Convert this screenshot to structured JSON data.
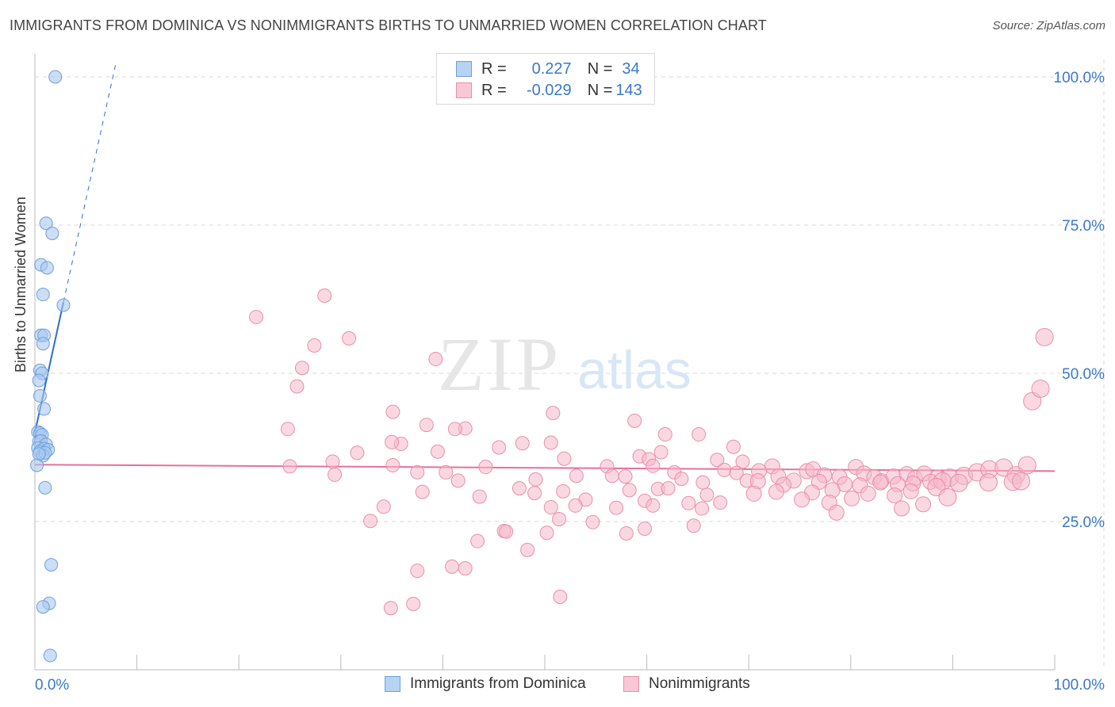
{
  "title": "IMMIGRANTS FROM DOMINICA VS NONIMMIGRANTS BIRTHS TO UNMARRIED WOMEN CORRELATION CHART",
  "source": "Source: ZipAtlas.com",
  "watermark": {
    "zip": "ZIP",
    "atlas": "atlas"
  },
  "legend": {
    "rows": [
      {
        "r_label": "R =",
        "r_value": "0.227",
        "n_label": "N =",
        "n_value": "34"
      },
      {
        "r_label": "R =",
        "r_value": "-0.029",
        "n_label": "N =",
        "n_value": "143"
      }
    ]
  },
  "bottom_legend": {
    "series_a": "Immigrants from Dominica",
    "series_b": "Nonimmigrants"
  },
  "colors": {
    "blue_fill": "#a9c8f0",
    "blue_stroke": "#6f9fdc",
    "blue_line": "#2f6fd0",
    "pink_fill": "#f5b8cb",
    "pink_stroke": "#e98fac",
    "pink_line": "#e8709a",
    "tick_text": "#3a78cc",
    "grid": "#d8d8d8"
  },
  "chart_data": {
    "type": "scatter",
    "title": "IMMIGRANTS FROM DOMINICA VS NONIMMIGRANTS BIRTHS TO UNMARRIED WOMEN CORRELATION CHART",
    "xlabel": "",
    "ylabel": "Births to Unmarried Women",
    "xlim": [
      0,
      100
    ],
    "ylim": [
      0,
      105
    ],
    "x_tick_labels": [
      "0.0%",
      "100.0%"
    ],
    "y_tick_labels": [
      "25.0%",
      "50.0%",
      "75.0%",
      "100.0%"
    ],
    "y_ticks": [
      25,
      50,
      75,
      100
    ],
    "series": [
      {
        "name": "Immigrants from Dominica",
        "r": 0.227,
        "n": 34,
        "trend": {
          "x0": 0,
          "y0": 40.0,
          "x1": 2.8,
          "y1": 62.0,
          "dash_to_x": 7.9,
          "dash_to_y": 102
        },
        "points": [
          [
            2.0,
            100.0
          ],
          [
            1.1,
            75.3
          ],
          [
            1.7,
            73.6
          ],
          [
            0.6,
            68.3
          ],
          [
            1.2,
            67.8
          ],
          [
            0.8,
            63.3
          ],
          [
            2.8,
            61.5
          ],
          [
            0.6,
            56.4
          ],
          [
            0.9,
            56.4
          ],
          [
            0.8,
            55.0
          ],
          [
            0.5,
            50.5
          ],
          [
            0.7,
            50.0
          ],
          [
            0.4,
            48.8
          ],
          [
            0.5,
            46.2
          ],
          [
            0.9,
            44.0
          ],
          [
            0.3,
            40.1
          ],
          [
            0.5,
            39.9
          ],
          [
            0.7,
            39.6
          ],
          [
            0.4,
            38.5
          ],
          [
            0.6,
            38.6
          ],
          [
            1.1,
            38.0
          ],
          [
            0.3,
            37.4
          ],
          [
            0.9,
            37.3
          ],
          [
            1.3,
            37.1
          ],
          [
            0.5,
            36.8
          ],
          [
            0.8,
            36.1
          ],
          [
            1.0,
            36.6
          ],
          [
            0.4,
            36.4
          ],
          [
            0.2,
            34.5
          ],
          [
            1.0,
            30.7
          ],
          [
            1.6,
            17.7
          ],
          [
            1.4,
            11.2
          ],
          [
            0.8,
            10.6
          ],
          [
            1.5,
            2.4
          ]
        ]
      },
      {
        "name": "Nonimmigrants",
        "r": -0.029,
        "n": 143,
        "trend": {
          "x0": 0,
          "y0": 34.6,
          "x1": 100,
          "y1": 33.5
        },
        "points": [
          [
            28.4,
            63.1
          ],
          [
            21.7,
            59.5
          ],
          [
            30.8,
            55.9
          ],
          [
            27.4,
            54.7
          ],
          [
            39.3,
            52.4
          ],
          [
            26.2,
            50.9
          ],
          [
            25.7,
            47.8
          ],
          [
            35.1,
            43.5
          ],
          [
            50.8,
            43.3
          ],
          [
            38.4,
            41.3
          ],
          [
            24.8,
            40.6
          ],
          [
            42.2,
            40.7
          ],
          [
            41.2,
            40.6
          ],
          [
            58.8,
            42.0
          ],
          [
            61.8,
            39.7
          ],
          [
            65.1,
            39.7
          ],
          [
            35.9,
            38.1
          ],
          [
            35.0,
            38.4
          ],
          [
            47.8,
            38.2
          ],
          [
            50.6,
            38.3
          ],
          [
            45.5,
            37.5
          ],
          [
            68.5,
            37.6
          ],
          [
            39.5,
            36.8
          ],
          [
            31.6,
            36.6
          ],
          [
            29.2,
            35.1
          ],
          [
            59.3,
            36.0
          ],
          [
            51.9,
            35.6
          ],
          [
            69.4,
            35.1
          ],
          [
            66.9,
            35.4
          ],
          [
            60.2,
            35.5
          ],
          [
            61.4,
            36.7
          ],
          [
            25.0,
            34.3
          ],
          [
            35.1,
            34.5
          ],
          [
            44.2,
            34.2
          ],
          [
            56.1,
            34.3
          ],
          [
            60.6,
            34.4
          ],
          [
            72.3,
            34.3
          ],
          [
            75.7,
            33.5
          ],
          [
            76.3,
            33.8
          ],
          [
            80.5,
            34.2
          ],
          [
            29.4,
            32.9
          ],
          [
            37.5,
            33.3
          ],
          [
            40.3,
            33.3
          ],
          [
            53.1,
            32.7
          ],
          [
            62.7,
            33.3
          ],
          [
            67.6,
            33.7
          ],
          [
            68.8,
            33.2
          ],
          [
            71.0,
            33.5
          ],
          [
            72.9,
            32.6
          ],
          [
            74.4,
            31.9
          ],
          [
            77.4,
            32.8
          ],
          [
            78.9,
            32.5
          ],
          [
            81.3,
            33.1
          ],
          [
            82.3,
            32.5
          ],
          [
            83.0,
            31.8
          ],
          [
            84.2,
            32.6
          ],
          [
            85.5,
            33.0
          ],
          [
            86.3,
            32.3
          ],
          [
            87.2,
            33.1
          ],
          [
            88.5,
            32.2
          ],
          [
            89.7,
            32.4
          ],
          [
            91.1,
            32.7
          ],
          [
            92.4,
            33.3
          ],
          [
            93.6,
            33.8
          ],
          [
            95.0,
            34.1
          ],
          [
            96.2,
            32.8
          ],
          [
            97.3,
            34.5
          ],
          [
            41.5,
            31.9
          ],
          [
            49.1,
            32.1
          ],
          [
            56.6,
            32.7
          ],
          [
            57.9,
            32.6
          ],
          [
            63.4,
            32.2
          ],
          [
            65.5,
            31.6
          ],
          [
            69.8,
            31.9
          ],
          [
            70.9,
            31.8
          ],
          [
            73.4,
            31.2
          ],
          [
            76.9,
            31.7
          ],
          [
            79.4,
            31.3
          ],
          [
            80.9,
            31.1
          ],
          [
            82.9,
            31.6
          ],
          [
            84.6,
            31.3
          ],
          [
            86.1,
            31.4
          ],
          [
            87.8,
            31.7
          ],
          [
            89.0,
            31.8
          ],
          [
            90.6,
            31.5
          ],
          [
            93.5,
            31.6
          ],
          [
            95.9,
            31.7
          ],
          [
            38.0,
            30.0
          ],
          [
            47.5,
            30.6
          ],
          [
            49.0,
            29.8
          ],
          [
            51.8,
            30.1
          ],
          [
            58.3,
            30.3
          ],
          [
            61.1,
            30.5
          ],
          [
            62.1,
            30.6
          ],
          [
            65.9,
            29.5
          ],
          [
            70.5,
            29.7
          ],
          [
            72.7,
            30.0
          ],
          [
            76.2,
            29.9
          ],
          [
            78.2,
            30.3
          ],
          [
            81.7,
            29.7
          ],
          [
            85.9,
            30.1
          ],
          [
            88.4,
            30.8
          ],
          [
            43.6,
            29.2
          ],
          [
            54.0,
            28.7
          ],
          [
            59.8,
            28.5
          ],
          [
            64.1,
            28.1
          ],
          [
            67.2,
            28.2
          ],
          [
            75.2,
            28.7
          ],
          [
            77.9,
            28.2
          ],
          [
            80.1,
            28.9
          ],
          [
            84.3,
            29.4
          ],
          [
            87.1,
            27.9
          ],
          [
            89.5,
            29.1
          ],
          [
            96.7,
            31.8
          ],
          [
            34.2,
            27.5
          ],
          [
            50.6,
            27.4
          ],
          [
            53.0,
            27.7
          ],
          [
            57.0,
            27.3
          ],
          [
            60.6,
            27.7
          ],
          [
            32.9,
            25.1
          ],
          [
            51.4,
            25.4
          ],
          [
            54.7,
            24.9
          ],
          [
            64.6,
            24.3
          ],
          [
            78.6,
            26.5
          ],
          [
            85.0,
            27.2
          ],
          [
            46.0,
            23.4
          ],
          [
            46.2,
            23.3
          ],
          [
            50.2,
            23.1
          ],
          [
            58.0,
            23.0
          ],
          [
            59.8,
            23.8
          ],
          [
            97.8,
            45.3
          ],
          [
            98.6,
            47.4
          ],
          [
            99.0,
            56.1
          ],
          [
            43.4,
            21.7
          ],
          [
            48.3,
            20.2
          ],
          [
            40.9,
            17.4
          ],
          [
            37.5,
            16.7
          ],
          [
            42.2,
            17.1
          ],
          [
            51.5,
            12.3
          ],
          [
            37.1,
            11.1
          ],
          [
            34.9,
            10.4
          ],
          [
            65.4,
            27.2
          ]
        ]
      }
    ]
  }
}
